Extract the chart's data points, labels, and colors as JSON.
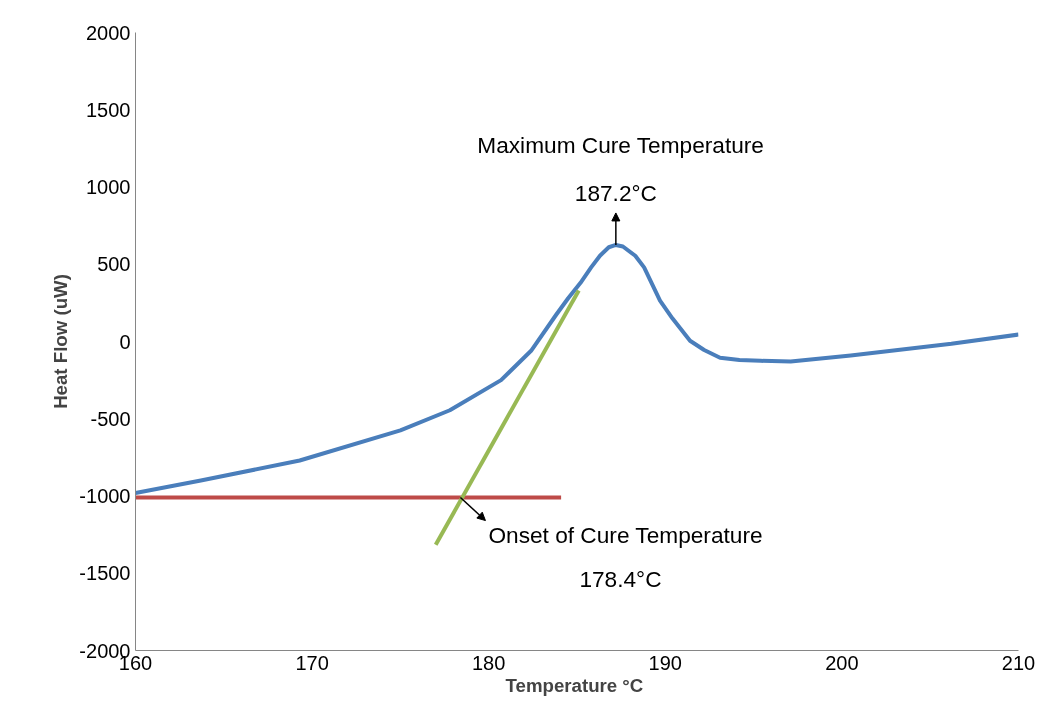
{
  "chart_data": {
    "type": "line",
    "xlabel": "Temperature  °C",
    "ylabel": "Heat Flow (uW)",
    "xlim": [
      160,
      210
    ],
    "xticks": [
      160,
      170,
      180,
      190,
      200,
      210
    ],
    "ylim": [
      -2000,
      2000
    ],
    "yticks": [
      -2000,
      -1500,
      -1000,
      -500,
      0,
      500,
      1000,
      1500,
      2000
    ],
    "grid": false,
    "marker": "none",
    "line_style": "solid",
    "series": [
      {
        "color": "#4a7ebb",
        "x": [
          160,
          163.7,
          169.3,
          175,
          177.8,
          180.7,
          182.4,
          183.8,
          184.5,
          185.2,
          185.8,
          186.3,
          186.8,
          187.2,
          187.6,
          188.3,
          188.8,
          189.7,
          190.4,
          191.4,
          192.2,
          193.1,
          194.2,
          195.4,
          197.1,
          200.5,
          206.2,
          210
        ],
        "values": [
          -980,
          -900,
          -770,
          -575,
          -445,
          -250,
          -60,
          170,
          280,
          380,
          480,
          555,
          610,
          625,
          615,
          555,
          480,
          265,
          150,
          5,
          -55,
          -105,
          -120,
          -125,
          -130,
          -90,
          -15,
          45
        ]
      },
      {
        "color": "#be4b48",
        "x": [
          160,
          184.1
        ],
        "values": [
          -1010,
          -1010
        ]
      },
      {
        "color": "#98b954",
        "x": [
          177,
          185.1
        ],
        "values": [
          -1315,
          330
        ]
      }
    ],
    "annotations": [
      "Maximum Cure Temperature",
      {
        "text": "187.2°C",
        "x": 187.2,
        "y": 625
      },
      {
        "text": "Onset of Cure Temperature",
        "x": 178.4,
        "y": -1010
      },
      "178.4°C"
    ]
  }
}
